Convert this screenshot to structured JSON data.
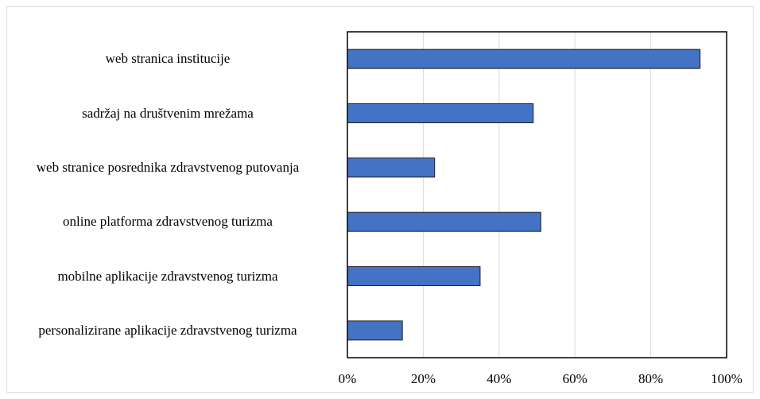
{
  "chart_data": {
    "type": "bar",
    "orientation": "horizontal",
    "categories": [
      "web stranica institucije",
      "sadržaj na društvenim mrežama",
      "web stranice posrednika zdravstvenog putovanja",
      "online platforma zdravstvenog turizma",
      "mobilne aplikacije zdravstvenog turizma",
      "personalizirane aplikacije zdravstvenog turizma"
    ],
    "values": [
      93,
      49,
      23,
      51,
      35,
      14.5
    ],
    "color": "#4472c4",
    "xlim": [
      0,
      100
    ],
    "xticks": [
      {
        "value": 0,
        "label": "0%"
      },
      {
        "value": 20,
        "label": "20%"
      },
      {
        "value": 40,
        "label": "40%"
      },
      {
        "value": 60,
        "label": "60%"
      },
      {
        "value": 80,
        "label": "80%"
      },
      {
        "value": 100,
        "label": "100%"
      }
    ],
    "grid": true
  }
}
